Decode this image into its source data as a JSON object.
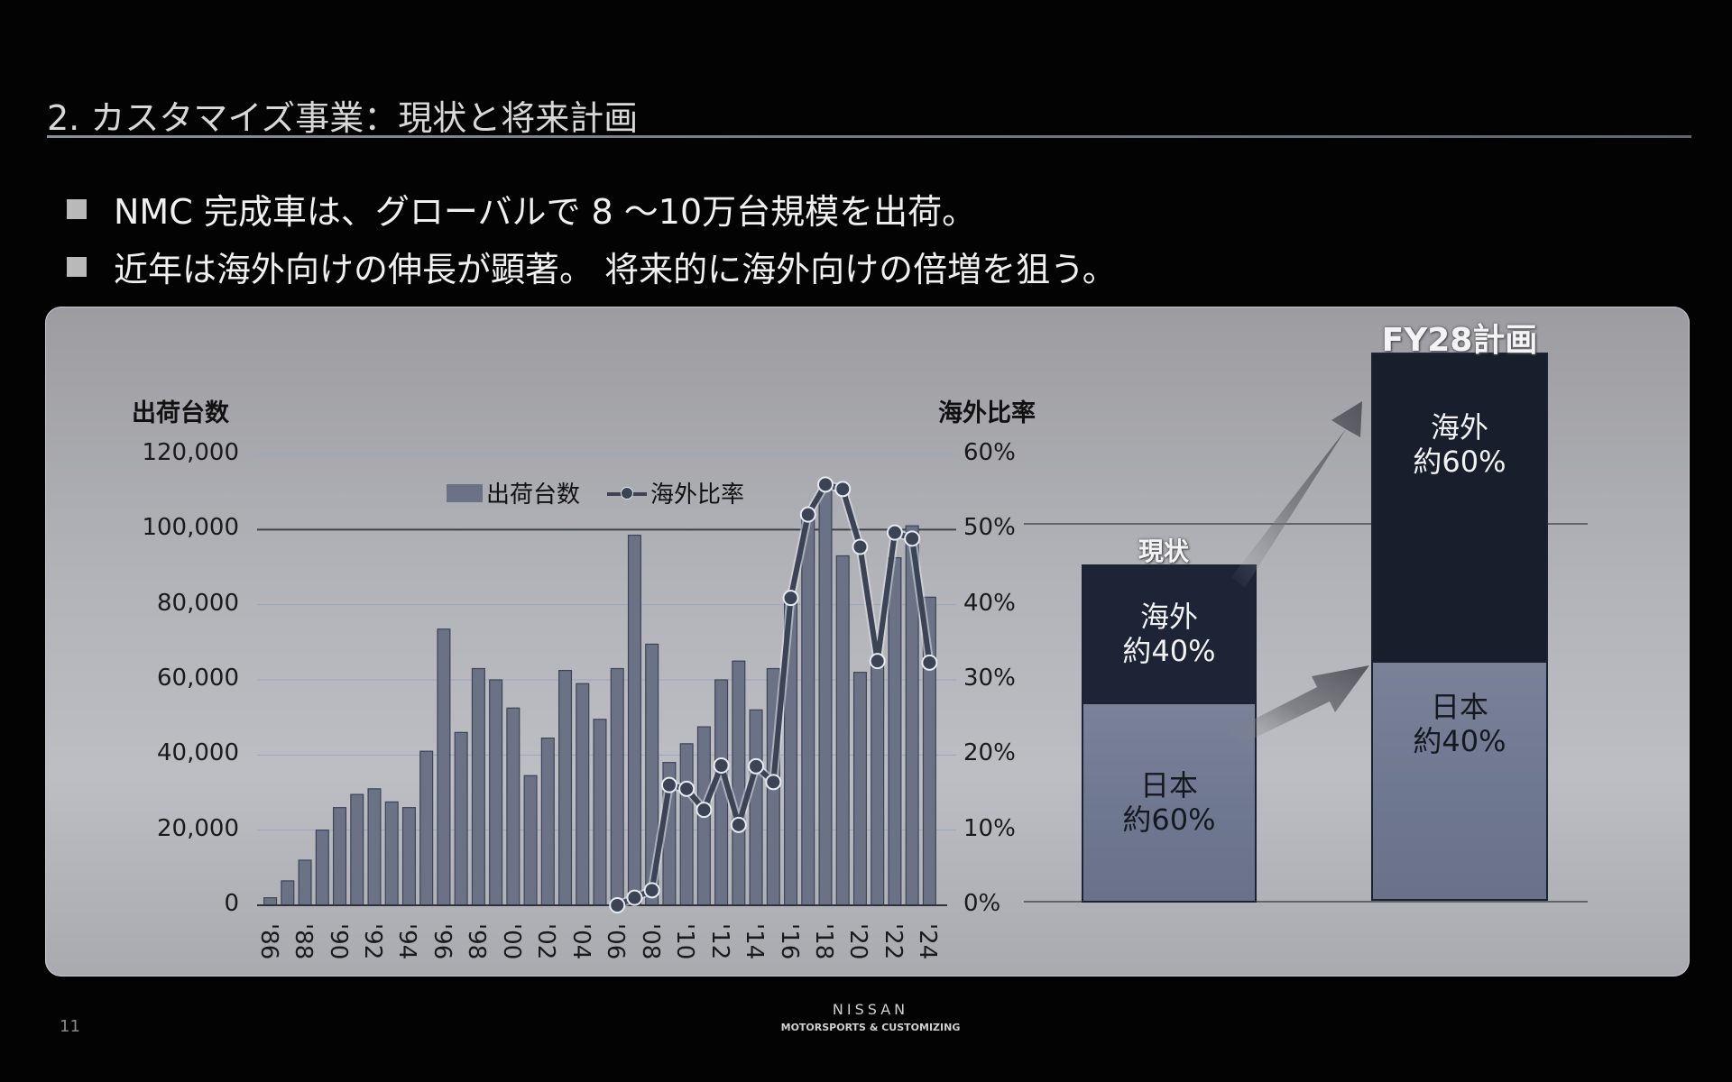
{
  "slide": {
    "title": "2. カスタマイズ事業：現状と将来計画",
    "bullets": [
      "NMC 完成車は、グローバルで 8 ～10万台規模を出荷。",
      "近年は海外向けの伸長が顕著。 将来的に海外向けの倍増を狙う。"
    ],
    "page_number": "11",
    "brand": {
      "name": "NISSAN",
      "sub": "MOTORSPORTS & CUSTOMIZING"
    }
  },
  "colors": {
    "bar": "#6b7286",
    "bar_border": "#3d4457",
    "line": "#3b4354",
    "overseas_block": "#1b2232",
    "japan_block": "#6f7890",
    "panel_bg": "#b3b4b9"
  },
  "chart_data": [
    {
      "type": "bar+line",
      "title": "",
      "ylabel": "出荷台数",
      "y2label": "海外比率",
      "ylim": [
        0,
        120000
      ],
      "y2lim": [
        0,
        0.6
      ],
      "yticks": [
        "0",
        "20,000",
        "40,000",
        "60,000",
        "80,000",
        "100,000",
        "120,000"
      ],
      "y2ticks": [
        "0%",
        "10%",
        "20%",
        "30%",
        "40%",
        "50%",
        "60%"
      ],
      "xtick_labels": [
        "'86",
        "'88",
        "'90",
        "'92",
        "'94",
        "'96",
        "'98",
        "'00",
        "'02",
        "'04",
        "'06",
        "'08",
        "'10",
        "'12",
        "'14",
        "'16",
        "'18",
        "'20",
        "'22",
        "'24"
      ],
      "legend": [
        "出荷台数",
        "海外比率"
      ],
      "legend_position": "top-center",
      "grid": true,
      "categories": [
        "1986",
        "1987",
        "1988",
        "1989",
        "1990",
        "1991",
        "1992",
        "1993",
        "1994",
        "1995",
        "1996",
        "1997",
        "1998",
        "1999",
        "2000",
        "2001",
        "2002",
        "2003",
        "2004",
        "2005",
        "2006",
        "2007",
        "2008",
        "2009",
        "2010",
        "2011",
        "2012",
        "2013",
        "2014",
        "2015",
        "2016",
        "2017",
        "2018",
        "2019",
        "2020",
        "2021",
        "2022",
        "2023",
        "2024"
      ],
      "series": [
        {
          "name": "出荷台数",
          "type": "bar",
          "axis": "left",
          "values": [
            2000,
            6500,
            12000,
            20000,
            26000,
            29500,
            31000,
            27500,
            26000,
            41000,
            73500,
            46000,
            63000,
            60000,
            52500,
            34500,
            44500,
            62500,
            59000,
            49500,
            63000,
            98500,
            69500,
            38000,
            43000,
            47500,
            60000,
            65000,
            52000,
            63000,
            81000,
            104000,
            112000,
            93000,
            62000,
            66000,
            92500,
            101000,
            82000
          ]
        },
        {
          "name": "海外比率",
          "type": "line",
          "axis": "right",
          "values": [
            null,
            null,
            null,
            null,
            null,
            null,
            null,
            null,
            null,
            null,
            null,
            null,
            null,
            null,
            null,
            null,
            null,
            null,
            null,
            null,
            0.0,
            0.01,
            0.02,
            0.16,
            0.155,
            0.127,
            0.186,
            0.107,
            0.185,
            0.164,
            0.409,
            0.52,
            0.56,
            0.554,
            0.477,
            0.325,
            0.496,
            0.488,
            0.323
          ]
        }
      ]
    },
    {
      "type": "stacked-bar",
      "categories": [
        "現状",
        "FY28計画"
      ],
      "series": [
        {
          "name": "日本",
          "values": [
            60,
            40
          ],
          "labels": [
            "日本\n約60%",
            "日本\n約40%"
          ]
        },
        {
          "name": "海外",
          "values": [
            40,
            60
          ],
          "labels": [
            "海外\n約40%",
            "海外\n約60%"
          ]
        }
      ],
      "annotations": [
        "arrows from 現状 to FY28計画 indicating growth"
      ]
    }
  ],
  "right_panel": {
    "current_label": "現状",
    "plan_label": "FY28計画",
    "current_overseas": [
      "海外",
      "約40%"
    ],
    "current_japan": [
      "日本",
      "約60%"
    ],
    "plan_overseas": [
      "海外",
      "約60%"
    ],
    "plan_japan": [
      "日本",
      "約40%"
    ]
  }
}
